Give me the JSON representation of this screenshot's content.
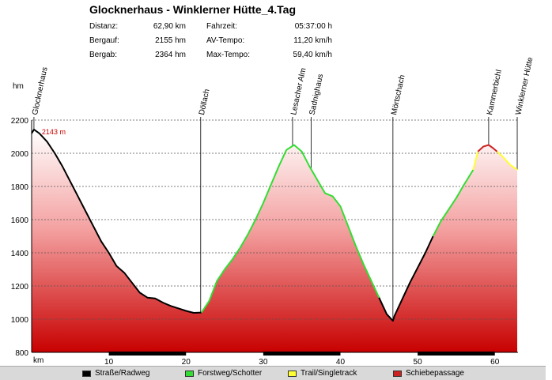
{
  "header": {
    "title": "Glocknerhaus - Winklerner Hütte_4.Tag",
    "stats": [
      {
        "label": "Distanz:",
        "value": "62,90 km"
      },
      {
        "label": "Bergauf:",
        "value": "2155 hm"
      },
      {
        "label": "Bergab:",
        "value": "2364 hm"
      },
      {
        "label": "Fahrzeit:",
        "value": "05:37:00 h"
      },
      {
        "label": "AV-Tempo:",
        "value": "11,20 km/h"
      },
      {
        "label": "Max-Tempo:",
        "value": "59,40 km/h"
      }
    ]
  },
  "chart_data": {
    "type": "area",
    "title": "Glocknerhaus - Winklerner Hütte_4.Tag",
    "xlabel": "km",
    "ylabel": "hm",
    "xlim": [
      0,
      63
    ],
    "ylim": [
      800,
      2200
    ],
    "x_ticks": [
      10,
      20,
      30,
      40,
      50,
      60
    ],
    "y_ticks": [
      800,
      1000,
      1200,
      1400,
      1600,
      1800,
      2000,
      2200
    ],
    "grid": true,
    "max_annotation": {
      "label": "2143 m",
      "x": 0.3,
      "y": 2143
    },
    "colors": {
      "Straße/Radweg": "#000000",
      "Forstweg/Schotter": "#33dd33",
      "Trail/Singletrack": "#ffff33",
      "Schiebepassage": "#cc2222"
    },
    "legend": [
      "Straße/Radweg",
      "Forstweg/Schotter",
      "Trail/Singletrack",
      "Schiebepassage"
    ],
    "waypoints": [
      {
        "name": "Glocknerhaus",
        "km": 0.3
      },
      {
        "name": "Döllach",
        "km": 21.9
      },
      {
        "name": "Lesacher Alm",
        "km": 33.8
      },
      {
        "name": "Sadnighaus",
        "km": 36.2
      },
      {
        "name": "Mörtschach",
        "km": 46.8
      },
      {
        "name": "Kammerbichl",
        "km": 59.2
      },
      {
        "name": "Winklerner Hütte",
        "km": 62.9
      }
    ],
    "series": [
      {
        "type": "Straße/Radweg",
        "x": [
          0,
          0.3,
          1,
          2,
          3,
          4,
          5,
          6,
          7,
          8,
          9,
          10,
          11,
          12,
          13,
          14,
          15,
          16,
          17,
          18,
          19,
          20,
          21,
          22
        ],
        "y": [
          2120,
          2143,
          2120,
          2070,
          2000,
          1920,
          1830,
          1740,
          1650,
          1560,
          1470,
          1400,
          1320,
          1280,
          1220,
          1160,
          1130,
          1125,
          1100,
          1080,
          1065,
          1050,
          1038,
          1040
        ]
      },
      {
        "type": "Forstweg/Schotter",
        "x": [
          22,
          23,
          24,
          25,
          26,
          27,
          28,
          29,
          30,
          31,
          32,
          33,
          34,
          35,
          36,
          37,
          38,
          39,
          40,
          41,
          42,
          43,
          44,
          45
        ],
        "y": [
          1040,
          1110,
          1230,
          1300,
          1360,
          1430,
          1510,
          1600,
          1700,
          1810,
          1920,
          2020,
          2050,
          2010,
          1920,
          1840,
          1760,
          1740,
          1680,
          1560,
          1440,
          1330,
          1230,
          1130
        ]
      },
      {
        "type": "Straße/Radweg",
        "x": [
          45,
          46,
          46.8,
          47,
          48,
          49,
          50,
          51,
          52
        ],
        "y": [
          1130,
          1030,
          990,
          1020,
          1120,
          1220,
          1310,
          1400,
          1500
        ]
      },
      {
        "type": "Forstweg/Schotter",
        "x": [
          52,
          53,
          54,
          55,
          56,
          57.2
        ],
        "y": [
          1500,
          1590,
          1660,
          1730,
          1810,
          1900
        ]
      },
      {
        "type": "Trail/Singletrack",
        "x": [
          57.2,
          57.8
        ],
        "y": [
          1900,
          2010
        ]
      },
      {
        "type": "Schiebepassage",
        "x": [
          57.8,
          58.5,
          59.2,
          59.8,
          60.3
        ],
        "y": [
          2010,
          2040,
          2050,
          2030,
          2010
        ]
      },
      {
        "type": "Trail/Singletrack",
        "x": [
          60.3,
          61,
          62,
          62.9
        ],
        "y": [
          2010,
          1980,
          1930,
          1900
        ]
      }
    ],
    "fill_bottom_segments": [
      [
        10,
        20
      ],
      [
        30,
        40
      ],
      [
        50,
        60
      ]
    ]
  }
}
